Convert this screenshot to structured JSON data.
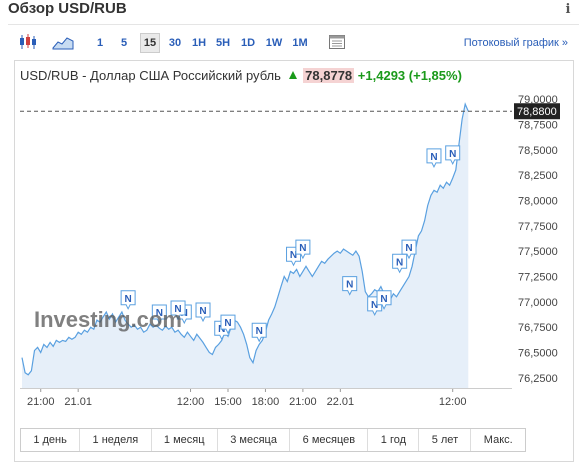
{
  "header": {
    "title": "Обзор USD/RUB",
    "info": "i"
  },
  "toolbar": {
    "intervals": [
      "1",
      "5",
      "15",
      "30",
      "1H",
      "5H",
      "1D",
      "1W",
      "1M"
    ],
    "active_interval": "15",
    "stream_link": "Потоковый график »",
    "icons": [
      "candlestick-icon",
      "area-chart-icon",
      "calendar-icon"
    ]
  },
  "quote": {
    "name": "USD/RUB - Доллар США Российский рубль",
    "last": "78,8778",
    "change": "+1,4293",
    "change_pct": "(+1,85%)"
  },
  "watermark": "Investing.com",
  "ranges": [
    "1 день",
    "1 неделя",
    "1 месяц",
    "3 месяца",
    "6 месяцев",
    "1 год",
    "5 лет",
    "Макс."
  ],
  "chart_data": {
    "type": "area",
    "x_ticks": [
      {
        "label": "21:00",
        "t": 6
      },
      {
        "label": "21.01",
        "t": 18
      },
      {
        "label": "12:00",
        "t": 54
      },
      {
        "label": "15:00",
        "t": 66
      },
      {
        "label": "18:00",
        "t": 78
      },
      {
        "label": "21:00",
        "t": 90
      },
      {
        "label": "22.01",
        "t": 102
      },
      {
        "label": "12:00",
        "t": 138
      }
    ],
    "x_range": [
      0,
      157
    ],
    "ylim": [
      76.15,
      79.05
    ],
    "y_ticks": [
      "79,0000",
      "78,7500",
      "78,5000",
      "78,2500",
      "78,0000",
      "77,7500",
      "77,5000",
      "77,2500",
      "77,0000",
      "76,7500",
      "76,5000",
      "76,2500"
    ],
    "y_tick_values": [
      79.0,
      78.75,
      78.5,
      78.25,
      78.0,
      77.75,
      77.5,
      77.25,
      77.0,
      76.75,
      76.5,
      76.25
    ],
    "current_price_label": "78,8800",
    "current_price": 78.88,
    "series": [
      {
        "values": [
          [
            0,
            76.45
          ],
          [
            1,
            76.3
          ],
          [
            2,
            76.28
          ],
          [
            3,
            76.32
          ],
          [
            4,
            76.52
          ],
          [
            5,
            76.55
          ],
          [
            6,
            76.5
          ],
          [
            7,
            76.58
          ],
          [
            8,
            76.55
          ],
          [
            9,
            76.6
          ],
          [
            10,
            76.56
          ],
          [
            11,
            76.62
          ],
          [
            12,
            76.6
          ],
          [
            13,
            76.62
          ],
          [
            14,
            76.61
          ],
          [
            15,
            76.65
          ],
          [
            16,
            76.63
          ],
          [
            17,
            76.65
          ],
          [
            18,
            76.7
          ],
          [
            19,
            76.68
          ],
          [
            20,
            76.72
          ],
          [
            21,
            76.7
          ],
          [
            22,
            76.75
          ],
          [
            23,
            76.73
          ],
          [
            24,
            76.82
          ],
          [
            25,
            76.8
          ],
          [
            26,
            76.85
          ],
          [
            27,
            76.9
          ],
          [
            28,
            76.83
          ],
          [
            29,
            76.88
          ],
          [
            30,
            76.8
          ],
          [
            31,
            76.85
          ],
          [
            32,
            76.9
          ],
          [
            33,
            76.82
          ],
          [
            34,
            76.78
          ],
          [
            35,
            76.75
          ],
          [
            36,
            76.77
          ],
          [
            37,
            76.73
          ],
          [
            38,
            76.75
          ],
          [
            39,
            76.7
          ],
          [
            40,
            76.72
          ],
          [
            41,
            76.78
          ],
          [
            42,
            76.75
          ],
          [
            43,
            76.77
          ],
          [
            44,
            76.74
          ],
          [
            45,
            76.72
          ],
          [
            46,
            76.76
          ],
          [
            47,
            76.73
          ],
          [
            48,
            76.75
          ],
          [
            49,
            76.7
          ],
          [
            50,
            76.72
          ],
          [
            51,
            76.68
          ],
          [
            52,
            76.65
          ],
          [
            53,
            76.7
          ],
          [
            54,
            76.66
          ],
          [
            55,
            76.62
          ],
          [
            56,
            76.68
          ],
          [
            57,
            76.64
          ],
          [
            58,
            76.6
          ],
          [
            59,
            76.55
          ],
          [
            60,
            76.5
          ],
          [
            61,
            76.48
          ],
          [
            62,
            76.55
          ],
          [
            63,
            76.58
          ],
          [
            64,
            76.62
          ],
          [
            65,
            76.7
          ],
          [
            66,
            76.66
          ],
          [
            67,
            76.75
          ],
          [
            68,
            76.82
          ],
          [
            69,
            76.8
          ],
          [
            70,
            76.75
          ],
          [
            71,
            76.68
          ],
          [
            72,
            76.58
          ],
          [
            73,
            76.45
          ],
          [
            74,
            76.4
          ],
          [
            75,
            76.52
          ],
          [
            76,
            76.58
          ],
          [
            77,
            76.62
          ],
          [
            78,
            76.7
          ],
          [
            79,
            76.82
          ],
          [
            80,
            76.88
          ],
          [
            81,
            76.95
          ],
          [
            82,
            77.05
          ],
          [
            83,
            77.15
          ],
          [
            84,
            77.25
          ],
          [
            85,
            77.2
          ],
          [
            86,
            77.3
          ],
          [
            87,
            77.28
          ],
          [
            88,
            77.32
          ],
          [
            89,
            77.25
          ],
          [
            90,
            77.3
          ],
          [
            91,
            77.35
          ],
          [
            92,
            77.3
          ],
          [
            93,
            77.25
          ],
          [
            94,
            77.3
          ],
          [
            95,
            77.35
          ],
          [
            96,
            77.4
          ],
          [
            97,
            77.38
          ],
          [
            98,
            77.42
          ],
          [
            99,
            77.45
          ],
          [
            100,
            77.48
          ],
          [
            101,
            77.5
          ],
          [
            102,
            77.48
          ],
          [
            103,
            77.52
          ],
          [
            104,
            77.5
          ],
          [
            105,
            77.48
          ],
          [
            106,
            77.46
          ],
          [
            107,
            77.5
          ],
          [
            108,
            77.45
          ],
          [
            109,
            77.3
          ],
          [
            110,
            77.1
          ],
          [
            111,
            77.05
          ],
          [
            112,
            77.08
          ],
          [
            113,
            77.12
          ],
          [
            114,
            77.1
          ],
          [
            115,
            77.15
          ],
          [
            116,
            77.08
          ],
          [
            117,
            77.05
          ],
          [
            118,
            77.02
          ],
          [
            119,
            77.08
          ],
          [
            120,
            77.05
          ],
          [
            121,
            77.1
          ],
          [
            122,
            77.15
          ],
          [
            123,
            77.2
          ],
          [
            124,
            77.25
          ],
          [
            125,
            77.35
          ],
          [
            126,
            77.5
          ],
          [
            127,
            77.65
          ],
          [
            128,
            77.7
          ],
          [
            129,
            77.8
          ],
          [
            130,
            77.95
          ],
          [
            131,
            78.05
          ],
          [
            132,
            78.1
          ],
          [
            133,
            78.08
          ],
          [
            134,
            78.15
          ],
          [
            135,
            78.12
          ],
          [
            136,
            78.18
          ],
          [
            137,
            78.15
          ],
          [
            138,
            78.22
          ],
          [
            139,
            78.3
          ],
          [
            140,
            78.55
          ],
          [
            141,
            78.8
          ],
          [
            142,
            78.95
          ],
          [
            143,
            78.88
          ]
        ]
      }
    ],
    "markers": [
      {
        "label": "N",
        "t": 121,
        "v": 77.38
      },
      {
        "label": "N",
        "t": 105,
        "v": 77.16
      },
      {
        "label": "N",
        "t": 113,
        "v": 76.96
      },
      {
        "label": "N",
        "t": 116,
        "v": 77.02
      },
      {
        "label": "N",
        "t": 87,
        "v": 77.45
      },
      {
        "label": "N",
        "t": 90,
        "v": 77.52
      },
      {
        "label": "N",
        "t": 124,
        "v": 77.52
      },
      {
        "label": "N",
        "t": 132,
        "v": 78.42
      },
      {
        "label": "N",
        "t": 138,
        "v": 78.45
      },
      {
        "label": "N",
        "t": 34,
        "v": 77.02
      },
      {
        "label": "N",
        "t": 44,
        "v": 76.88
      },
      {
        "label": "N",
        "t": 52,
        "v": 76.88
      },
      {
        "label": "N",
        "t": 58,
        "v": 76.9
      },
      {
        "label": "N",
        "t": 64,
        "v": 76.72
      },
      {
        "label": "N",
        "t": 66,
        "v": 76.78
      },
      {
        "label": "N",
        "t": 76,
        "v": 76.7
      },
      {
        "label": "N",
        "t": 50,
        "v": 76.92
      }
    ]
  },
  "colors": {
    "line": "#5aa0e0",
    "fill": "#e6eff9",
    "marker_border": "#5aa0e0",
    "dashed": "#555555"
  }
}
